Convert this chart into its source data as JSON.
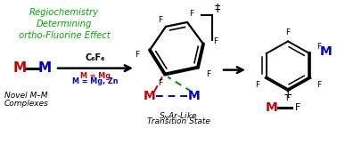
{
  "bg_color": "#ffffff",
  "green_color": "#00aa00",
  "red_color": "#cc0000",
  "blue_color": "#0000cc",
  "black_color": "#000000",
  "title_lines": [
    "Regiochemistry",
    "Determining",
    "ortho-Fluorine Effect"
  ],
  "label_novel_1": "Novel M–M",
  "label_novel_2": "Complexes",
  "label_ts_1": "SₙAr-Like",
  "label_ts_2": "Transition State",
  "c6f6": "C₆F₆",
  "dagger": "‡"
}
